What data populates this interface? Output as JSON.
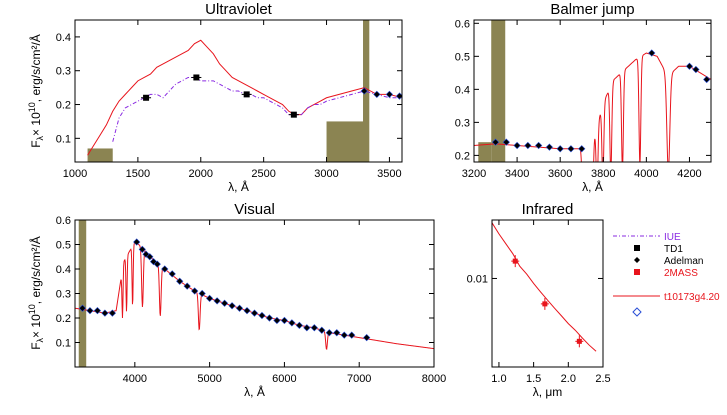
{
  "colors": {
    "model": "#e8141c",
    "iue": "#8a2be2",
    "td1": "#000000",
    "adelman": "#000000",
    "twomass": "#e8141c",
    "filter": "#8b8452",
    "diamond": "#2a4fd6"
  },
  "ylabel_main": "F",
  "ylabel_sub": "λ",
  "ylabel_rest": "× 10",
  "ylabel_exp": "10",
  "ylabel_units": ", erg/s/cm²/Å",
  "legend": {
    "iue": "IUE",
    "td1": "TD1",
    "adelman": "Adelman",
    "twomass": "2MASS",
    "model": "t10173g4.20"
  },
  "chart_data": [
    {
      "id": "uv",
      "type": "line",
      "title": "Ultraviolet",
      "xlabel": "λ, Å",
      "xlim": [
        1000,
        3600
      ],
      "ylim": [
        0.03,
        0.45
      ],
      "xticks": [
        1000,
        1500,
        2000,
        2500,
        3000,
        3500
      ],
      "yticks": [
        0.1,
        0.2,
        0.3,
        0.4
      ],
      "ytick_labels": [
        "0.1",
        "0.2",
        "0.3",
        "0.4"
      ],
      "model": [
        [
          1100,
          0.05
        ],
        [
          1150,
          0.08
        ],
        [
          1200,
          0.11
        ],
        [
          1250,
          0.14
        ],
        [
          1300,
          0.18
        ],
        [
          1350,
          0.21
        ],
        [
          1400,
          0.23
        ],
        [
          1450,
          0.25
        ],
        [
          1500,
          0.27
        ],
        [
          1550,
          0.28
        ],
        [
          1600,
          0.29
        ],
        [
          1650,
          0.31
        ],
        [
          1700,
          0.32
        ],
        [
          1750,
          0.33
        ],
        [
          1800,
          0.34
        ],
        [
          1850,
          0.35
        ],
        [
          1900,
          0.36
        ],
        [
          1950,
          0.38
        ],
        [
          2000,
          0.39
        ],
        [
          2050,
          0.37
        ],
        [
          2100,
          0.35
        ],
        [
          2150,
          0.32
        ],
        [
          2200,
          0.3
        ],
        [
          2250,
          0.28
        ],
        [
          2300,
          0.27
        ],
        [
          2350,
          0.26
        ],
        [
          2400,
          0.25
        ],
        [
          2450,
          0.24
        ],
        [
          2500,
          0.23
        ],
        [
          2550,
          0.22
        ],
        [
          2600,
          0.21
        ],
        [
          2650,
          0.2
        ],
        [
          2700,
          0.18
        ],
        [
          2750,
          0.17
        ],
        [
          2800,
          0.17
        ],
        [
          2850,
          0.19
        ],
        [
          2900,
          0.2
        ],
        [
          2950,
          0.21
        ],
        [
          3000,
          0.22
        ],
        [
          3100,
          0.23
        ],
        [
          3200,
          0.24
        ],
        [
          3300,
          0.25
        ],
        [
          3400,
          0.23
        ],
        [
          3500,
          0.23
        ],
        [
          3600,
          0.22
        ]
      ],
      "iue": [
        [
          1300,
          0.09
        ],
        [
          1350,
          0.16
        ],
        [
          1400,
          0.19
        ],
        [
          1450,
          0.2
        ],
        [
          1500,
          0.21
        ],
        [
          1550,
          0.22
        ],
        [
          1600,
          0.23
        ],
        [
          1650,
          0.23
        ],
        [
          1700,
          0.22
        ],
        [
          1750,
          0.24
        ],
        [
          1800,
          0.26
        ],
        [
          1850,
          0.27
        ],
        [
          1900,
          0.28
        ],
        [
          1950,
          0.28
        ],
        [
          2000,
          0.27
        ],
        [
          2050,
          0.27
        ],
        [
          2100,
          0.27
        ],
        [
          2150,
          0.26
        ],
        [
          2200,
          0.25
        ],
        [
          2250,
          0.24
        ],
        [
          2300,
          0.24
        ],
        [
          2350,
          0.23
        ],
        [
          2400,
          0.23
        ],
        [
          2450,
          0.22
        ],
        [
          2500,
          0.22
        ],
        [
          2550,
          0.21
        ],
        [
          2600,
          0.2
        ],
        [
          2650,
          0.19
        ],
        [
          2700,
          0.17
        ],
        [
          2750,
          0.17
        ],
        [
          2800,
          0.17
        ],
        [
          2850,
          0.19
        ],
        [
          2900,
          0.2
        ],
        [
          2950,
          0.2
        ],
        [
          3000,
          0.21
        ],
        [
          3100,
          0.22
        ],
        [
          3200,
          0.23
        ],
        [
          3300,
          0.24
        ],
        [
          3400,
          0.23
        ],
        [
          3500,
          0.22
        ],
        [
          3600,
          0.22
        ]
      ],
      "td1": [
        [
          1565,
          0.22
        ],
        [
          1965,
          0.28
        ],
        [
          2365,
          0.23
        ],
        [
          2740,
          0.17
        ]
      ],
      "adelman": [
        [
          3300,
          0.24
        ],
        [
          3400,
          0.23
        ],
        [
          3500,
          0.23
        ],
        [
          3580,
          0.225
        ]
      ],
      "filters": [
        [
          1100,
          1300,
          0.07
        ],
        [
          3000,
          3330,
          0.15
        ],
        [
          3290,
          3340,
          0.45
        ]
      ]
    },
    {
      "id": "balmer",
      "type": "line",
      "title": "Balmer jump",
      "xlabel": "λ, Å",
      "xlim": [
        3200,
        4300
      ],
      "ylim": [
        0.18,
        0.61
      ],
      "xticks": [
        3200,
        3400,
        3600,
        3800,
        4000,
        4200
      ],
      "yticks": [
        0.2,
        0.3,
        0.4,
        0.5,
        0.6
      ],
      "ytick_labels": [
        "0.2",
        "0.3",
        "0.4",
        "0.5",
        "0.6"
      ],
      "model": [
        [
          3200,
          0.23
        ],
        [
          3300,
          0.235
        ],
        [
          3400,
          0.23
        ],
        [
          3500,
          0.225
        ],
        [
          3600,
          0.22
        ],
        [
          3700,
          0.22
        ],
        [
          3750,
          0.24
        ],
        [
          3800,
          0.36
        ],
        [
          3850,
          0.43
        ],
        [
          3900,
          0.46
        ],
        [
          3950,
          0.49
        ],
        [
          4000,
          0.51
        ],
        [
          4050,
          0.5
        ],
        [
          4100,
          0.44
        ],
        [
          4150,
          0.47
        ],
        [
          4200,
          0.47
        ],
        [
          4250,
          0.45
        ],
        [
          4300,
          0.43
        ]
      ],
      "adelman": [
        [
          3300,
          0.24
        ],
        [
          3350,
          0.24
        ],
        [
          3400,
          0.23
        ],
        [
          3450,
          0.23
        ],
        [
          3500,
          0.23
        ],
        [
          3550,
          0.225
        ],
        [
          3600,
          0.22
        ],
        [
          3650,
          0.22
        ],
        [
          3700,
          0.22
        ],
        [
          4025,
          0.51
        ],
        [
          4200,
          0.47
        ],
        [
          4230,
          0.46
        ],
        [
          4280,
          0.43
        ]
      ],
      "lines": [
        3705,
        3720,
        3735,
        3750,
        3771,
        3798,
        3835,
        3889,
        3970,
        4102
      ],
      "filters": [
        [
          3280,
          3345,
          0.61
        ],
        [
          3220,
          3280,
          0.24
        ]
      ]
    },
    {
      "id": "visual",
      "type": "line",
      "title": "Visual",
      "xlabel": "λ, Å",
      "xlim": [
        3200,
        8000
      ],
      "ylim": [
        0.0,
        0.6
      ],
      "xticks": [
        4000,
        5000,
        6000,
        7000,
        8000
      ],
      "yticks": [
        0.1,
        0.2,
        0.3,
        0.4,
        0.5,
        0.6
      ],
      "ytick_labels": [
        "0.1",
        "0.2",
        "0.3",
        "0.4",
        "0.5",
        "0.6"
      ],
      "model": [
        [
          3200,
          0.24
        ],
        [
          3400,
          0.23
        ],
        [
          3600,
          0.22
        ],
        [
          3750,
          0.23
        ],
        [
          3850,
          0.43
        ],
        [
          4000,
          0.51
        ],
        [
          4100,
          0.49
        ],
        [
          4200,
          0.45
        ],
        [
          4400,
          0.4
        ],
        [
          4600,
          0.35
        ],
        [
          4800,
          0.31
        ],
        [
          5000,
          0.28
        ],
        [
          5200,
          0.26
        ],
        [
          5400,
          0.24
        ],
        [
          5600,
          0.22
        ],
        [
          5800,
          0.2
        ],
        [
          6000,
          0.19
        ],
        [
          6200,
          0.17
        ],
        [
          6400,
          0.16
        ],
        [
          6600,
          0.14
        ],
        [
          6800,
          0.13
        ],
        [
          7000,
          0.12
        ],
        [
          7200,
          0.11
        ],
        [
          7500,
          0.095
        ],
        [
          8000,
          0.075
        ]
      ],
      "adelman": [
        [
          3300,
          0.24
        ],
        [
          3400,
          0.23
        ],
        [
          3500,
          0.23
        ],
        [
          3600,
          0.22
        ],
        [
          3700,
          0.22
        ],
        [
          4025,
          0.51
        ],
        [
          4100,
          0.48
        ],
        [
          4150,
          0.46
        ],
        [
          4200,
          0.45
        ],
        [
          4250,
          0.43
        ],
        [
          4300,
          0.42
        ],
        [
          4400,
          0.4
        ],
        [
          4500,
          0.38
        ],
        [
          4600,
          0.35
        ],
        [
          4700,
          0.33
        ],
        [
          4800,
          0.31
        ],
        [
          4900,
          0.3
        ],
        [
          5000,
          0.28
        ],
        [
          5100,
          0.27
        ],
        [
          5200,
          0.26
        ],
        [
          5300,
          0.25
        ],
        [
          5400,
          0.24
        ],
        [
          5500,
          0.23
        ],
        [
          5600,
          0.22
        ],
        [
          5700,
          0.21
        ],
        [
          5800,
          0.2
        ],
        [
          5900,
          0.19
        ],
        [
          6000,
          0.19
        ],
        [
          6100,
          0.18
        ],
        [
          6200,
          0.17
        ],
        [
          6300,
          0.16
        ],
        [
          6400,
          0.16
        ],
        [
          6500,
          0.15
        ],
        [
          6600,
          0.14
        ],
        [
          6700,
          0.14
        ],
        [
          6800,
          0.13
        ],
        [
          6900,
          0.13
        ],
        [
          7100,
          0.12
        ]
      ],
      "lines": [
        3835,
        3889,
        3970,
        4102,
        4340,
        4861,
        6563
      ],
      "filters": [
        [
          3250,
          3350,
          0.6
        ]
      ]
    },
    {
      "id": "infrared",
      "type": "line",
      "title": "Infrared",
      "xlabel": "λ, μm",
      "xlim": [
        0.9,
        2.5
      ],
      "ylim_log": [
        0.0015,
        0.035
      ],
      "xticks": [
        1.0,
        1.5,
        2.0,
        2.5
      ],
      "xtick_labels": [
        "1.0",
        "1.5",
        "2.0",
        "2.5"
      ],
      "yticks": [
        0.01
      ],
      "ytick_labels": [
        "0.01"
      ],
      "model": [
        [
          0.9,
          0.033
        ],
        [
          1.0,
          0.026
        ],
        [
          1.1,
          0.021
        ],
        [
          1.2,
          0.017
        ],
        [
          1.3,
          0.013
        ],
        [
          1.4,
          0.011
        ],
        [
          1.5,
          0.009
        ],
        [
          1.6,
          0.0075
        ],
        [
          1.7,
          0.0063
        ],
        [
          1.8,
          0.0053
        ],
        [
          1.9,
          0.0045
        ],
        [
          2.0,
          0.0038
        ],
        [
          2.1,
          0.0033
        ],
        [
          2.2,
          0.0028
        ],
        [
          2.3,
          0.0024
        ],
        [
          2.4,
          0.0021
        ]
      ],
      "twomass": [
        [
          1.235,
          0.0145
        ],
        [
          1.662,
          0.0058
        ],
        [
          2.159,
          0.0026
        ]
      ]
    }
  ]
}
